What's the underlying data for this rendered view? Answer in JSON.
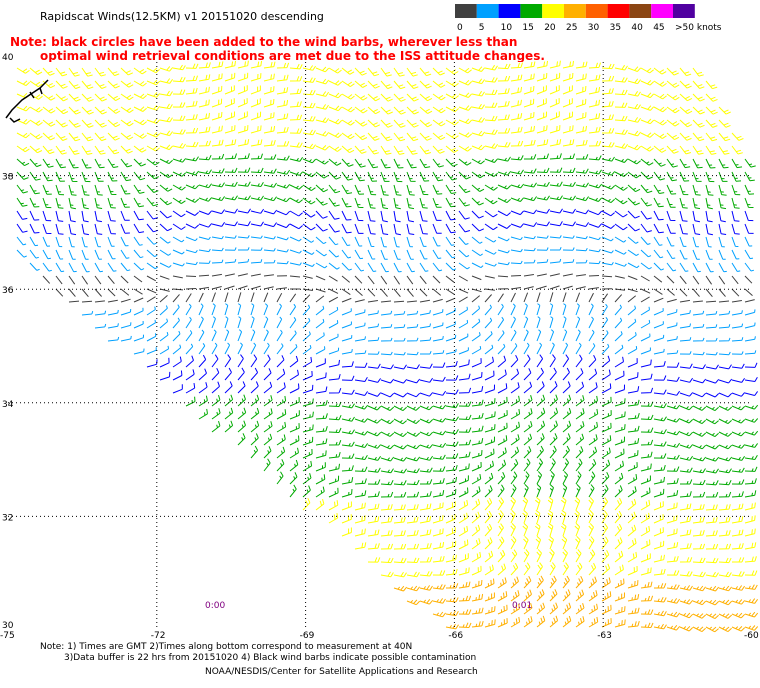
{
  "header": {
    "title": "Rapidscat Winds(12.5KM) v1 20151020 descending",
    "note_line1": "Note: black circles have been added to the wind barbs, wherever less than",
    "note_line2": "optimal wind retrieval conditions are met due to the ISS attitude changes."
  },
  "legend": {
    "labels": [
      "0",
      "5",
      "10",
      "15",
      "20",
      "25",
      "30",
      "35",
      "40",
      "45",
      ">50 knots"
    ],
    "colors": [
      "#404040",
      "#00a0ff",
      "#0000ff",
      "#00aa00",
      "#ffff00",
      "#ffb000",
      "#ff6000",
      "#ff0000",
      "#8b4513",
      "#ff00ff",
      "#5000a0"
    ],
    "label_colors": [
      "#404040",
      "#00a0ff",
      "#0000c0",
      "#00a000",
      "#d0c000",
      "#e09000",
      "#ff6000",
      "#ff0000",
      "#8b4513",
      "#ff00ff",
      "#5000a0"
    ]
  },
  "map": {
    "lat_labels": [
      "40",
      "38",
      "36",
      "34",
      "32",
      "30"
    ],
    "lon_labels": [
      "-75",
      "-72",
      "-69",
      "-66",
      "-63",
      "-60"
    ],
    "time_labels": [
      "0:00",
      "0:01"
    ],
    "lon_range": [
      -75,
      -60
    ],
    "lat_range": [
      30,
      40
    ],
    "lat_grid": [
      38,
      36,
      34,
      32
    ],
    "lon_grid": [
      -72,
      -69,
      -66,
      -63
    ]
  },
  "footer": {
    "line1": "Note: 1) Times are GMT 2)Times along bottom correspond to measurement at 40N",
    "line2": "3)Data buffer is 22 hrs from 20151020 4) Black wind barbs indicate possible contamination",
    "line3": "NOAA/NESDIS/Center for Satellite Applications and Research"
  },
  "wind_field": {
    "speed_bands_knots": [
      0,
      5,
      10,
      15,
      20,
      25,
      30,
      35
    ],
    "regions": [
      {
        "lat_from": 38.4,
        "lat_to": 40,
        "speed": 22,
        "color": "#ffff00"
      },
      {
        "lat_from": 37.6,
        "lat_to": 38.4,
        "speed": 17,
        "color": "#00aa00"
      },
      {
        "lat_from": 37.0,
        "lat_to": 37.6,
        "speed": 12,
        "color": "#0000ff"
      },
      {
        "lat_from": 36.3,
        "lat_to": 37.0,
        "speed": 8,
        "color": "#00a0ff"
      },
      {
        "lat_from": 35.6,
        "lat_to": 36.3,
        "speed": 3,
        "color": "#404040"
      },
      {
        "lat_from": 34.7,
        "lat_to": 35.6,
        "speed": 8,
        "color": "#00a0ff"
      },
      {
        "lat_from": 34.0,
        "lat_to": 34.7,
        "speed": 12,
        "color": "#0000ff"
      },
      {
        "lat_from": 32.2,
        "lat_to": 34.0,
        "speed": 17,
        "color": "#00aa00"
      },
      {
        "lat_from": 30.8,
        "lat_to": 32.2,
        "speed": 22,
        "color": "#ffff00"
      },
      {
        "lat_from": 30.0,
        "lat_to": 30.8,
        "speed": 27,
        "color": "#ffb000"
      }
    ]
  }
}
